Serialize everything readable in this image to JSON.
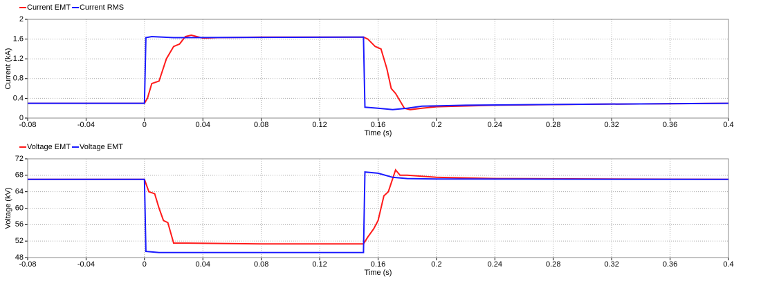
{
  "chart_data": [
    {
      "type": "line",
      "xlabel": "Time (s)",
      "ylabel": "Current (kA)",
      "legend": "top-left",
      "grid": true,
      "xlim": [
        -0.08,
        0.4
      ],
      "xticks": [
        -0.08,
        -0.04,
        0,
        0.04,
        0.08,
        0.12,
        0.16,
        0.2,
        0.24,
        0.28,
        0.32,
        0.36,
        0.4
      ],
      "ylim": [
        0,
        2
      ],
      "yticks": [
        0,
        0.4,
        0.8,
        1.2,
        1.6,
        2
      ],
      "series": [
        {
          "name": "Current EMT",
          "color": "#ff1a1a",
          "x": [
            -0.08,
            0,
            0.002,
            0.005,
            0.01,
            0.015,
            0.02,
            0.024,
            0.028,
            0.032,
            0.04,
            0.05,
            0.08,
            0.15,
            0.153,
            0.158,
            0.162,
            0.166,
            0.169,
            0.172,
            0.178,
            0.182,
            0.19,
            0.2,
            0.24,
            0.3,
            0.4
          ],
          "values": [
            0.3,
            0.3,
            0.4,
            0.7,
            0.75,
            1.2,
            1.45,
            1.5,
            1.65,
            1.68,
            1.62,
            1.63,
            1.64,
            1.64,
            1.6,
            1.45,
            1.4,
            1.0,
            0.6,
            0.5,
            0.2,
            0.17,
            0.2,
            0.23,
            0.26,
            0.28,
            0.3
          ]
        },
        {
          "name": "Current RMS",
          "color": "#1a1aff",
          "x": [
            -0.08,
            0,
            0.001,
            0.005,
            0.02,
            0.15,
            0.151,
            0.16,
            0.17,
            0.18,
            0.19,
            0.22,
            0.3,
            0.4
          ],
          "values": [
            0.3,
            0.3,
            1.63,
            1.65,
            1.63,
            1.64,
            0.22,
            0.2,
            0.17,
            0.2,
            0.24,
            0.26,
            0.28,
            0.3
          ]
        }
      ]
    },
    {
      "type": "line",
      "xlabel": "Time (s)",
      "ylabel": "Voltage (kV)",
      "legend": "top-left",
      "grid": true,
      "xlim": [
        -0.08,
        0.4
      ],
      "xticks": [
        -0.08,
        -0.04,
        0,
        0.04,
        0.08,
        0.12,
        0.16,
        0.2,
        0.24,
        0.28,
        0.32,
        0.36,
        0.4
      ],
      "ylim": [
        48,
        72
      ],
      "yticks": [
        48,
        52,
        56,
        60,
        64,
        68,
        72
      ],
      "series": [
        {
          "name": "Voltage EMT",
          "color": "#ff1a1a",
          "x": [
            -0.08,
            0,
            0.003,
            0.007,
            0.01,
            0.013,
            0.016,
            0.02,
            0.03,
            0.08,
            0.15,
            0.153,
            0.157,
            0.16,
            0.164,
            0.167,
            0.172,
            0.175,
            0.18,
            0.2,
            0.24,
            0.4
          ],
          "values": [
            67,
            67,
            64,
            63.5,
            60,
            57,
            56.5,
            51.5,
            51.5,
            51.3,
            51.3,
            53,
            55,
            57,
            63,
            64,
            69.3,
            68,
            68,
            67.5,
            67.2,
            67
          ]
        },
        {
          "name": "Voltage EMT",
          "color": "#1a1aff",
          "x": [
            -0.08,
            0,
            0.001,
            0.01,
            0.15,
            0.151,
            0.16,
            0.17,
            0.18,
            0.2,
            0.4
          ],
          "values": [
            67,
            67,
            49.5,
            49.2,
            49.2,
            68.8,
            68.5,
            67.5,
            67.2,
            67.1,
            67
          ]
        }
      ]
    }
  ]
}
